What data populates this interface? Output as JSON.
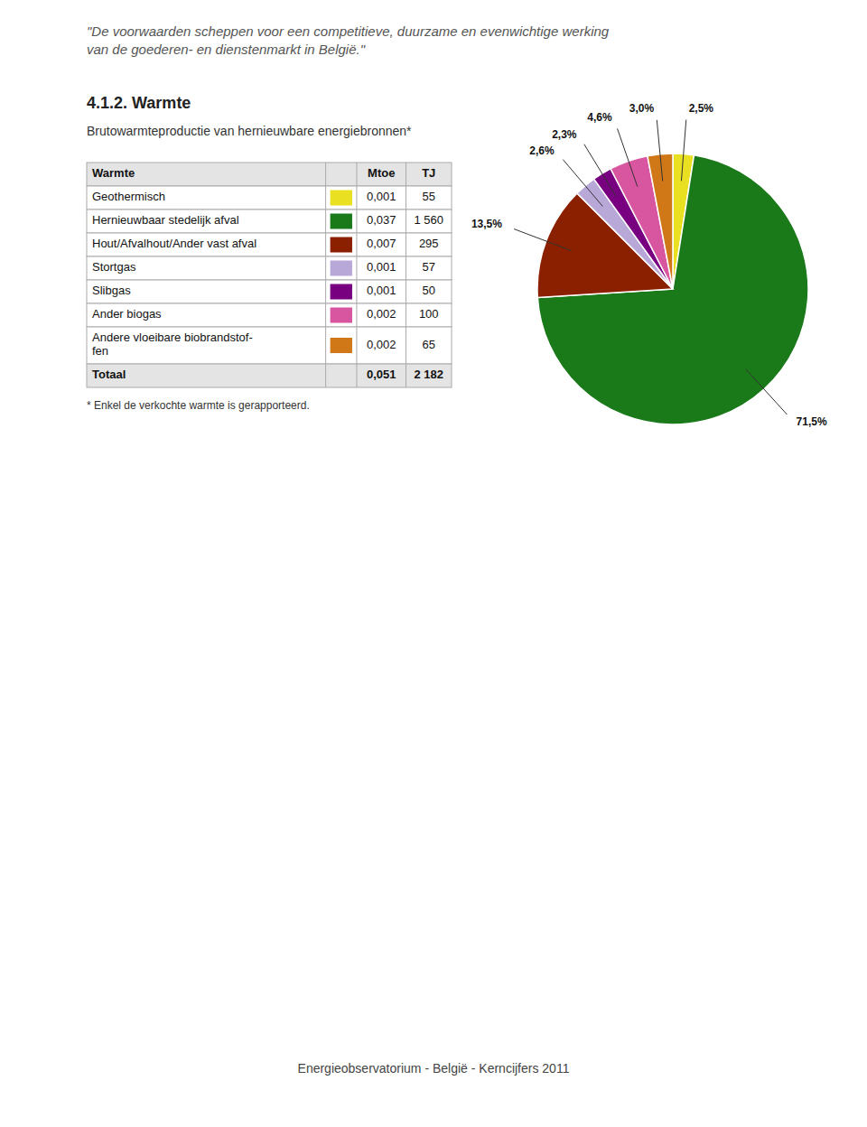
{
  "chart_data": [
    {
      "type": "pie",
      "title": "4.1.2. Warmte",
      "subtitle": "Brutowarmteproductie van hernieuwbare energiebronnen*",
      "quote": [
        "\"De voorwaarden scheppen voor een competitieve, duurzame en evenwichtige werking",
        "van de goederen- en dienstenmarkt in België.\""
      ],
      "footnote": "* Enkel de verkochte warmte is gerapporteerd.",
      "source": "Energieobservatorium - België - Kerncijfers 2011",
      "values": [
        2.5,
        71.5,
        13.5,
        2.6,
        2.3,
        4.6,
        3.0
      ],
      "value_labels": [
        "2,5%",
        "71,5%",
        "13,5%",
        "2,6%",
        "2,3%",
        "4,6%",
        "3,0%"
      ],
      "colors": [
        "#e8e020",
        "#1a7a1a",
        "#8b2000",
        "#b8a8d8",
        "#780080",
        "#d855a0",
        "#d07818"
      ],
      "data_labels": true
    },
    {
      "type": "table",
      "row_header": "Warmte",
      "categories": [
        "Geothermisch",
        "Hernieuwbaar stedelijk afval",
        "Hout/Afvalhout/Ander vast afval",
        "Stortgas",
        "Slibgas",
        "Ander biogas",
        "Andere vloeibare biobrandstof-\nfen"
      ],
      "colors": [
        "#e8e020",
        "#1a7a1a",
        "#8b2000",
        "#b8a8d8",
        "#780080",
        "#d855a0",
        "#d07818"
      ],
      "series": [
        {
          "name": "Mtoe",
          "values": [
            0.001,
            0.037,
            0.007,
            0.001,
            0.001,
            0.002,
            0.002
          ],
          "value_labels": [
            "0,001",
            "0,037",
            "0,007",
            "0,001",
            "0,001",
            "0,002",
            "0,002"
          ]
        },
        {
          "name": "TJ",
          "values": [
            55,
            1560,
            295,
            57,
            50,
            100,
            65
          ],
          "value_labels": [
            "55",
            "1 560",
            "295",
            "57",
            "50",
            "100",
            "65"
          ]
        }
      ],
      "total": {
        "name": "Totaal",
        "values": [
          0.051,
          2182
        ],
        "value_labels": [
          "0,051",
          "2 182"
        ]
      }
    }
  ]
}
